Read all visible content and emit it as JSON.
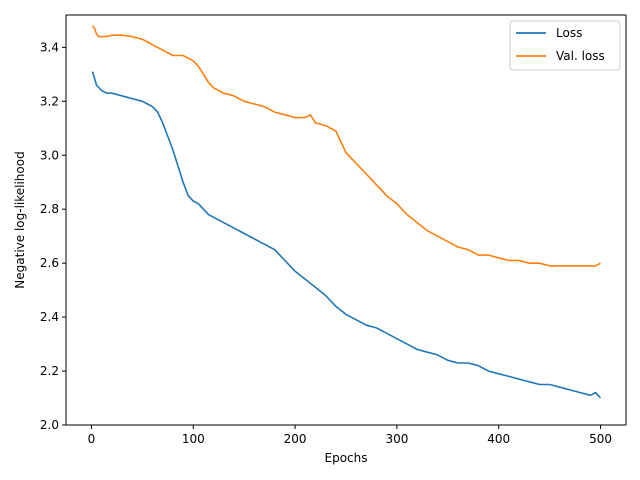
{
  "chart_data": {
    "type": "line",
    "title": "",
    "xlabel": "Epochs",
    "ylabel": "Negative log-likelihood",
    "xlim": [
      -25,
      525
    ],
    "ylim": [
      2.0,
      3.52
    ],
    "xticks": [
      0,
      100,
      200,
      300,
      400,
      500
    ],
    "xtick_labels": [
      "0",
      "100",
      "200",
      "300",
      "400",
      "500"
    ],
    "yticks": [
      2.0,
      2.2,
      2.4,
      2.6,
      2.8,
      3.0,
      3.2,
      3.4
    ],
    "ytick_labels": [
      "2.0",
      "2.2",
      "2.4",
      "2.6",
      "2.8",
      "3.0",
      "3.2",
      "3.4"
    ],
    "grid": false,
    "legend_position": "top-right",
    "series": [
      {
        "name": "Loss",
        "color": "#1f77b4",
        "x": [
          1,
          5,
          10,
          15,
          20,
          30,
          40,
          50,
          55,
          60,
          65,
          70,
          75,
          80,
          85,
          90,
          95,
          100,
          105,
          110,
          115,
          120,
          130,
          140,
          150,
          160,
          170,
          180,
          190,
          200,
          210,
          220,
          230,
          240,
          250,
          260,
          270,
          280,
          290,
          300,
          310,
          320,
          330,
          340,
          350,
          360,
          370,
          380,
          390,
          400,
          410,
          420,
          430,
          440,
          450,
          460,
          470,
          480,
          490,
          495,
          500
        ],
        "values": [
          3.31,
          3.26,
          3.24,
          3.23,
          3.23,
          3.22,
          3.21,
          3.2,
          3.19,
          3.18,
          3.16,
          3.12,
          3.07,
          3.02,
          2.96,
          2.9,
          2.85,
          2.83,
          2.82,
          2.8,
          2.78,
          2.77,
          2.75,
          2.73,
          2.71,
          2.69,
          2.67,
          2.65,
          2.61,
          2.57,
          2.54,
          2.51,
          2.48,
          2.44,
          2.41,
          2.39,
          2.37,
          2.36,
          2.34,
          2.32,
          2.3,
          2.28,
          2.27,
          2.26,
          2.24,
          2.23,
          2.23,
          2.22,
          2.2,
          2.19,
          2.18,
          2.17,
          2.16,
          2.15,
          2.15,
          2.14,
          2.13,
          2.12,
          2.11,
          2.12,
          2.1
        ]
      },
      {
        "name": "Val. loss",
        "color": "#ff7f0e",
        "x": [
          1,
          3,
          5,
          7,
          10,
          15,
          20,
          30,
          40,
          50,
          55,
          60,
          65,
          70,
          75,
          80,
          85,
          90,
          95,
          100,
          105,
          110,
          115,
          120,
          130,
          140,
          150,
          160,
          170,
          180,
          190,
          200,
          210,
          215,
          220,
          230,
          240,
          245,
          250,
          260,
          270,
          280,
          290,
          300,
          310,
          320,
          330,
          340,
          350,
          360,
          370,
          380,
          390,
          400,
          410,
          420,
          430,
          440,
          450,
          460,
          470,
          480,
          490,
          495,
          500
        ],
        "values": [
          3.48,
          3.47,
          3.45,
          3.44,
          3.44,
          3.44,
          3.445,
          3.445,
          3.44,
          3.43,
          3.42,
          3.41,
          3.4,
          3.39,
          3.38,
          3.37,
          3.37,
          3.37,
          3.36,
          3.35,
          3.33,
          3.3,
          3.27,
          3.25,
          3.23,
          3.22,
          3.2,
          3.19,
          3.18,
          3.16,
          3.15,
          3.14,
          3.14,
          3.15,
          3.12,
          3.11,
          3.09,
          3.05,
          3.01,
          2.97,
          2.93,
          2.89,
          2.85,
          2.82,
          2.78,
          2.75,
          2.72,
          2.7,
          2.68,
          2.66,
          2.65,
          2.63,
          2.63,
          2.62,
          2.61,
          2.61,
          2.6,
          2.6,
          2.59,
          2.59,
          2.59,
          2.59,
          2.59,
          2.59,
          2.6
        ]
      }
    ]
  }
}
